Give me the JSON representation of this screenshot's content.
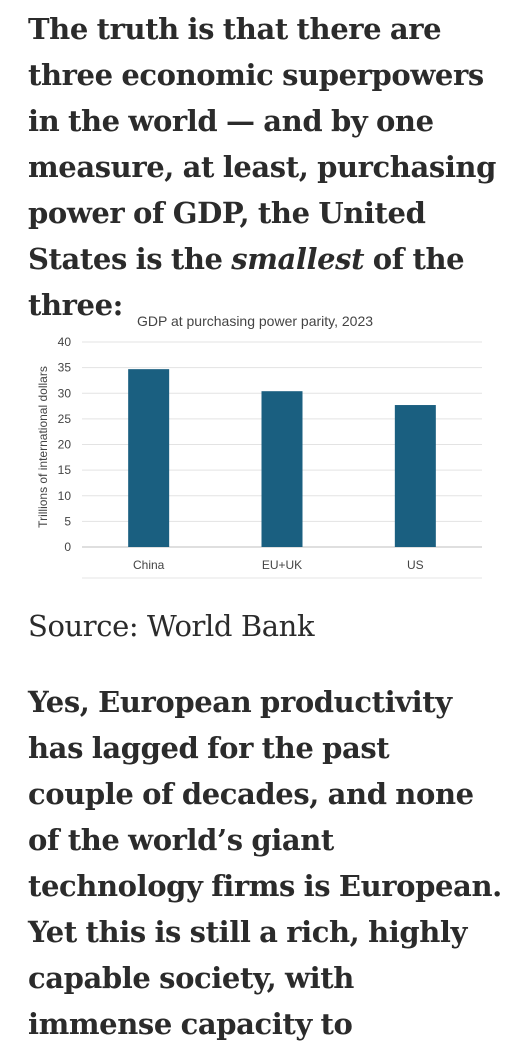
{
  "article": {
    "intro": {
      "before": "The truth is that there are three economic superpowers in the world — and by one measure, at least, purchasing power of GDP, the United States is the ",
      "emphasis": "smallest",
      "after": " of the three:"
    },
    "source": "Source: World Bank",
    "outro": "Yes, European productivity has lagged for the past couple of decades, and none of the world’s giant technology firms is European. Yet this is still a rich, highly capable society, with immense capacity to"
  },
  "chart_data": {
    "type": "bar",
    "title": "GDP at purchasing power parity, 2023",
    "ylabel": "Trillions of international dollars",
    "xlabel": "",
    "categories": [
      "China",
      "EU+UK",
      "US"
    ],
    "values": [
      34.7,
      30.4,
      27.7
    ],
    "ylim": [
      0,
      40
    ],
    "yticks": [
      0,
      5,
      10,
      15,
      20,
      25,
      30,
      35,
      40
    ],
    "grid": true,
    "bar_color": "#1a5f80"
  }
}
